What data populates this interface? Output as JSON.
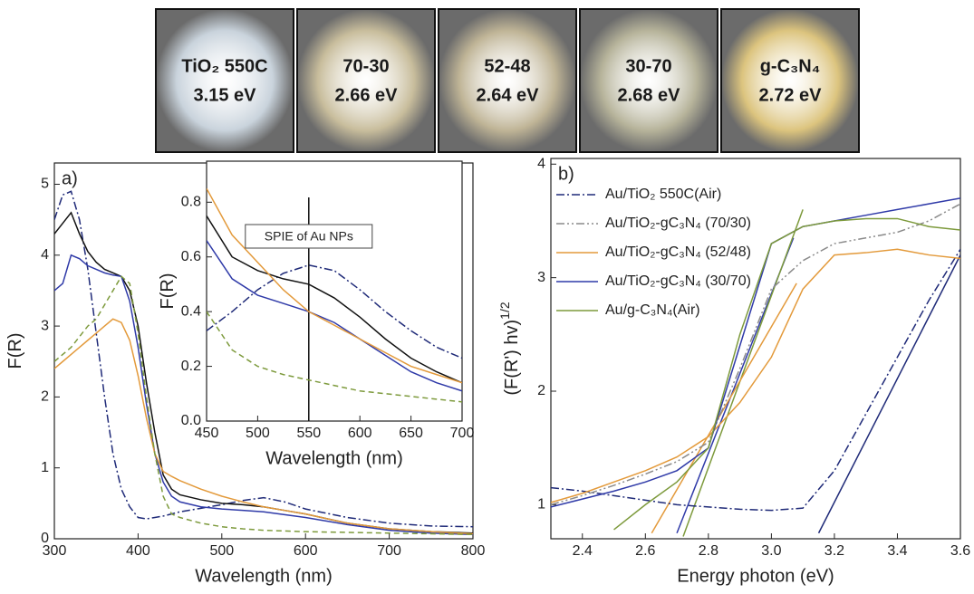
{
  "photos": [
    {
      "label": "TiO₂ 550C",
      "band_gap": "3.15 eV",
      "color": "#c9d3dc"
    },
    {
      "label": "70-30",
      "band_gap": "2.66 eV",
      "color": "#c8bd9c"
    },
    {
      "label": "52-48",
      "band_gap": "2.64 eV",
      "color": "#bfb496"
    },
    {
      "label": "30-70",
      "band_gap": "2.68 eV",
      "color": "#b6b39a"
    },
    {
      "label": "g-C₃N₄",
      "band_gap": "2.72 eV",
      "color": "#dcc47e"
    }
  ],
  "chart_data": [
    {
      "type": "line",
      "panel_label": "a)",
      "x_label": "Wavelength (nm)",
      "y_label": "F(R)",
      "xlim": [
        300,
        800
      ],
      "xticks": [
        300,
        400,
        500,
        600,
        700,
        800
      ],
      "ylim": [
        0,
        5.3
      ],
      "yticks": [
        0,
        1,
        2,
        3,
        4,
        5
      ],
      "x": [
        300,
        310,
        320,
        330,
        340,
        350,
        360,
        370,
        380,
        390,
        400,
        410,
        420,
        430,
        440,
        450,
        475,
        500,
        525,
        550,
        575,
        600,
        650,
        700,
        750,
        800
      ],
      "series": [
        {
          "color": "#1f2a78",
          "style": "dashdot",
          "values": [
            4.5,
            4.85,
            4.9,
            4.5,
            3.8,
            2.9,
            2.0,
            1.2,
            0.7,
            0.45,
            0.3,
            0.28,
            0.3,
            0.32,
            0.35,
            0.38,
            0.43,
            0.48,
            0.54,
            0.58,
            0.52,
            0.42,
            0.3,
            0.22,
            0.18,
            0.17
          ]
        },
        {
          "color": "#111111",
          "style": "solid",
          "values": [
            4.3,
            4.45,
            4.6,
            4.3,
            4.05,
            3.9,
            3.8,
            3.75,
            3.7,
            3.5,
            3.0,
            2.2,
            1.5,
            0.9,
            0.7,
            0.62,
            0.55,
            0.5,
            0.48,
            0.45,
            0.4,
            0.35,
            0.22,
            0.14,
            0.1,
            0.08
          ]
        },
        {
          "color": "#2f3aa8",
          "style": "solid",
          "values": [
            3.5,
            3.6,
            4.0,
            3.95,
            3.85,
            3.8,
            3.75,
            3.72,
            3.7,
            3.35,
            2.7,
            1.9,
            1.2,
            0.8,
            0.6,
            0.52,
            0.45,
            0.42,
            0.4,
            0.38,
            0.34,
            0.3,
            0.2,
            0.12,
            0.08,
            0.06
          ]
        },
        {
          "color": "#e39a3b",
          "style": "solid",
          "values": [
            2.4,
            2.5,
            2.6,
            2.7,
            2.8,
            2.9,
            3.0,
            3.1,
            3.05,
            2.8,
            2.3,
            1.7,
            1.2,
            0.95,
            0.88,
            0.82,
            0.7,
            0.6,
            0.52,
            0.45,
            0.4,
            0.35,
            0.22,
            0.14,
            0.1,
            0.07
          ]
        },
        {
          "color": "#7d9a3c",
          "style": "dash",
          "values": [
            2.5,
            2.6,
            2.7,
            2.85,
            3.0,
            3.1,
            3.3,
            3.5,
            3.7,
            3.6,
            2.9,
            2.0,
            1.2,
            0.6,
            0.35,
            0.3,
            0.22,
            0.17,
            0.14,
            0.12,
            0.11,
            0.1,
            0.09,
            0.08,
            0.07,
            0.06
          ]
        }
      ]
    },
    {
      "type": "line",
      "x_label": "Wavelength (nm)",
      "y_label": "F(R)",
      "xlim": [
        450,
        700
      ],
      "xticks": [
        450,
        500,
        550,
        600,
        650,
        700
      ],
      "ylim": [
        0,
        0.95
      ],
      "yticks": [
        {
          "value": 0,
          "label": "0.0"
        },
        0.2,
        0.4,
        0.6,
        0.8
      ],
      "annotation": {
        "text": "SPIE of Au NPs",
        "x": 550
      },
      "x": [
        450,
        475,
        500,
        525,
        550,
        575,
        600,
        625,
        650,
        675,
        700
      ],
      "series": [
        {
          "color": "#1f2a78",
          "style": "dashdot",
          "values": [
            0.33,
            0.4,
            0.48,
            0.54,
            0.57,
            0.55,
            0.48,
            0.4,
            0.33,
            0.27,
            0.23
          ]
        },
        {
          "color": "#111111",
          "style": "solid",
          "values": [
            0.75,
            0.6,
            0.55,
            0.52,
            0.5,
            0.45,
            0.38,
            0.3,
            0.23,
            0.18,
            0.14
          ]
        },
        {
          "color": "#2f3aa8",
          "style": "solid",
          "values": [
            0.66,
            0.52,
            0.46,
            0.43,
            0.4,
            0.36,
            0.3,
            0.24,
            0.18,
            0.14,
            0.11
          ]
        },
        {
          "color": "#e39a3b",
          "style": "solid",
          "values": [
            0.85,
            0.68,
            0.58,
            0.48,
            0.4,
            0.35,
            0.3,
            0.25,
            0.2,
            0.17,
            0.14
          ]
        },
        {
          "color": "#7d9a3c",
          "style": "dash",
          "values": [
            0.4,
            0.26,
            0.2,
            0.17,
            0.15,
            0.13,
            0.11,
            0.1,
            0.09,
            0.08,
            0.07
          ]
        }
      ]
    },
    {
      "type": "line",
      "panel_label": "b)",
      "x_label": "Energy photon (eV)",
      "y_label": "(F(R') hv)",
      "y_label_sup": "1/2",
      "xlim": [
        2.3,
        3.6
      ],
      "xticks": [
        2.4,
        2.6,
        2.8,
        {
          "value": 3,
          "label": "3.0"
        },
        3.2,
        3.4,
        3.6
      ],
      "ylim": [
        0.7,
        4.05
      ],
      "yticks": [
        1,
        2,
        3,
        4
      ],
      "legend": "top-left",
      "x": [
        2.3,
        2.4,
        2.5,
        2.6,
        2.7,
        2.8,
        2.9,
        3.0,
        3.1,
        3.2,
        3.3,
        3.4,
        3.5,
        3.6
      ],
      "series": [
        {
          "name": "Au/TiO₂ 550C(Air)",
          "color": "#1f2a78",
          "style": "dashdot",
          "values": [
            1.15,
            1.12,
            1.08,
            1.04,
            1.0,
            0.98,
            0.96,
            0.95,
            0.97,
            1.3,
            1.8,
            2.3,
            2.8,
            3.25
          ]
        },
        {
          "name": "Au/TiO₂-gC₃N₄ (70/30)",
          "color": "#8a8a8a",
          "style": "dashdotdot",
          "values": [
            1.0,
            1.08,
            1.17,
            1.27,
            1.38,
            1.55,
            2.2,
            2.9,
            3.15,
            3.3,
            3.35,
            3.4,
            3.5,
            3.65
          ]
        },
        {
          "name": "Au/TiO₂-gC₃N₄ (52/48)",
          "color": "#e39a3b",
          "style": "solid",
          "values": [
            1.02,
            1.1,
            1.2,
            1.3,
            1.42,
            1.6,
            1.9,
            2.3,
            2.9,
            3.2,
            3.22,
            3.25,
            3.2,
            3.17
          ]
        },
        {
          "name": "Au/TiO₂-gC₃N₄ (30/70)",
          "color": "#2f3aa8",
          "style": "solid",
          "values": [
            0.98,
            1.05,
            1.12,
            1.2,
            1.3,
            1.5,
            2.4,
            3.3,
            3.45,
            3.5,
            3.55,
            3.6,
            3.65,
            3.7
          ]
        },
        {
          "name": "Au/g-C₃N₄(Air)",
          "color": "#7d9a3c",
          "style": "solid",
          "values": [
            null,
            null,
            0.78,
            1.0,
            1.2,
            1.5,
            2.5,
            3.3,
            3.45,
            3.5,
            3.52,
            3.52,
            3.45,
            3.42
          ]
        }
      ],
      "fit_lines": [
        {
          "color": "#1f2a78",
          "x": [
            3.15,
            3.6
          ],
          "values": [
            0.75,
            3.2
          ]
        },
        {
          "color": "#2f3aa8",
          "x": [
            2.7,
            3.07
          ],
          "values": [
            0.75,
            3.35
          ]
        },
        {
          "color": "#7d9a3c",
          "x": [
            2.72,
            3.1
          ],
          "values": [
            0.72,
            3.6
          ]
        },
        {
          "color": "#e39a3b",
          "x": [
            2.62,
            3.08
          ],
          "values": [
            0.75,
            2.95
          ]
        }
      ]
    }
  ]
}
